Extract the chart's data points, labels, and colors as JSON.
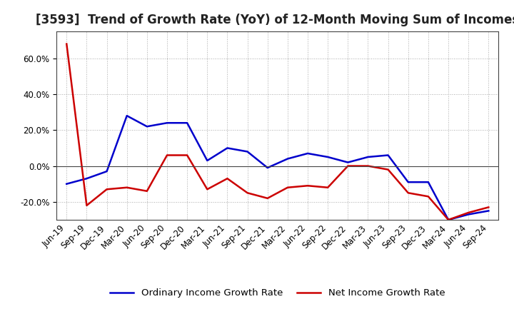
{
  "title": "[3593]  Trend of Growth Rate (YoY) of 12-Month Moving Sum of Incomes",
  "x_labels": [
    "Jun-19",
    "Sep-19",
    "Dec-19",
    "Mar-20",
    "Jun-20",
    "Sep-20",
    "Dec-20",
    "Mar-21",
    "Jun-21",
    "Sep-21",
    "Dec-21",
    "Mar-22",
    "Jun-22",
    "Sep-22",
    "Dec-22",
    "Mar-23",
    "Jun-23",
    "Sep-23",
    "Dec-23",
    "Mar-24",
    "Jun-24",
    "Sep-24"
  ],
  "ordinary_income": [
    -10,
    -7,
    -3,
    28,
    22,
    24,
    24,
    3,
    10,
    8,
    -1,
    4,
    7,
    5,
    2,
    5,
    6,
    -9,
    -9,
    -30,
    -27,
    -25
  ],
  "net_income": [
    68,
    -22,
    -13,
    -12,
    -14,
    6,
    6,
    -13,
    -7,
    -15,
    -18,
    -12,
    -11,
    -12,
    0,
    0,
    -2,
    -15,
    -17,
    -30,
    -26,
    -23
  ],
  "ordinary_color": "#0000cc",
  "net_color": "#cc0000",
  "ylim_min": -30,
  "ylim_max": 75,
  "yticks": [
    -20,
    0,
    20,
    40,
    60
  ],
  "background_color": "#ffffff",
  "grid_color": "#aaaaaa",
  "legend_ordinary": "Ordinary Income Growth Rate",
  "legend_net": "Net Income Growth Rate",
  "title_fontsize": 12,
  "tick_fontsize": 8.5,
  "legend_fontsize": 9.5
}
